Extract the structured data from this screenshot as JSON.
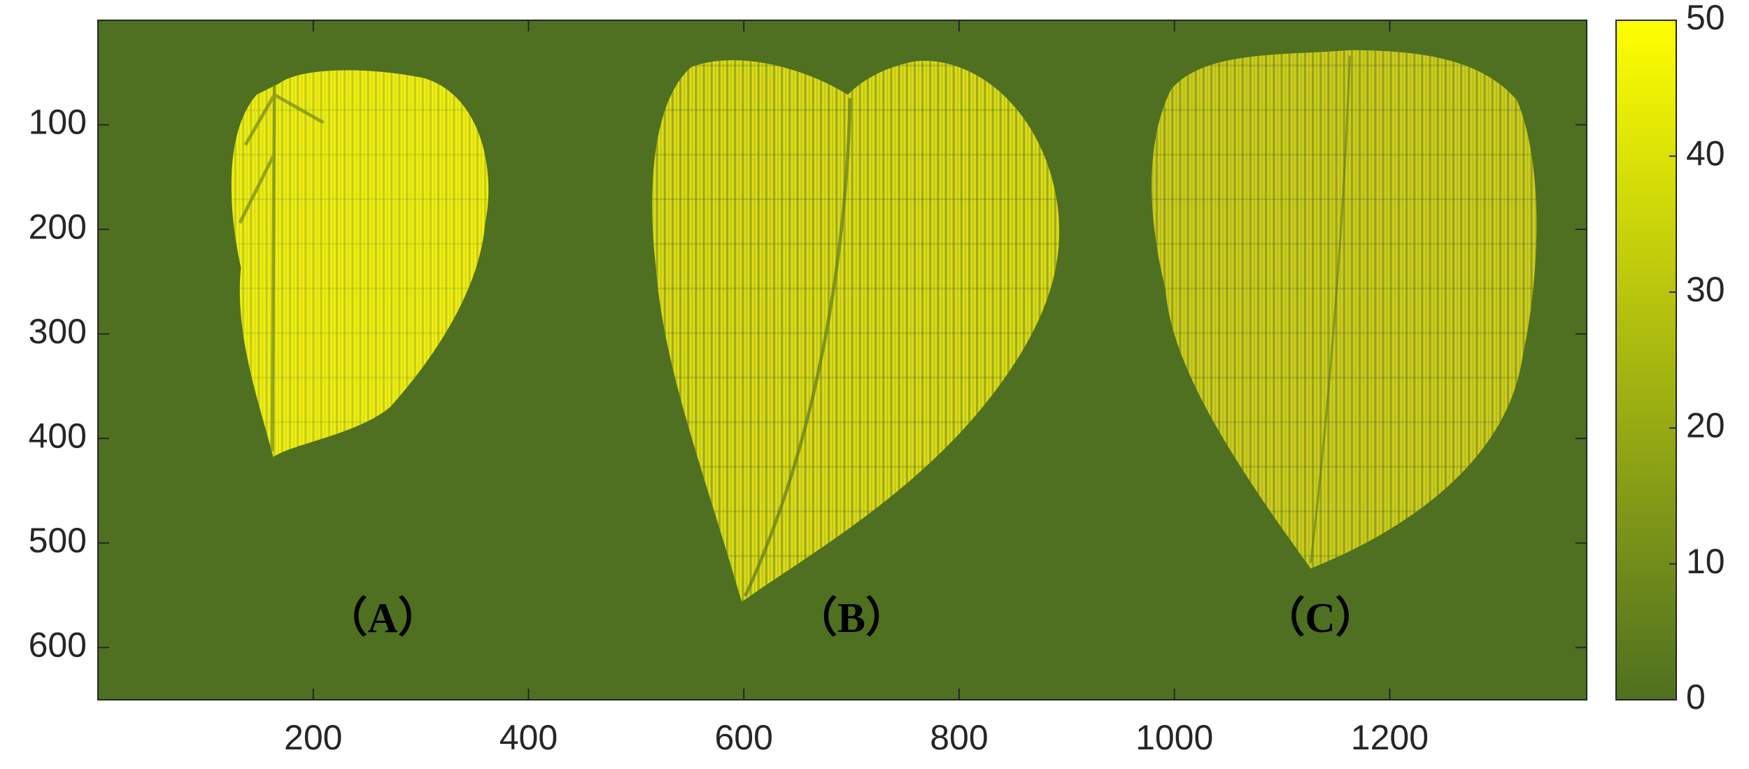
{
  "chart_data": {
    "type": "heatmap",
    "xlim": [
      0,
      1383
    ],
    "xticks": [
      200,
      400,
      600,
      800,
      1000,
      1200
    ],
    "ylim": [
      0,
      650
    ],
    "yticks": [
      100,
      200,
      300,
      400,
      500,
      600
    ],
    "y_reversed": true,
    "clim": [
      0,
      50
    ],
    "cticks": [
      0,
      10,
      20,
      30,
      40,
      50
    ],
    "colormap": [
      "#4f7020",
      "#ffff00"
    ],
    "annotations": [
      "（A）",
      "（B）",
      "（C）"
    ]
  }
}
